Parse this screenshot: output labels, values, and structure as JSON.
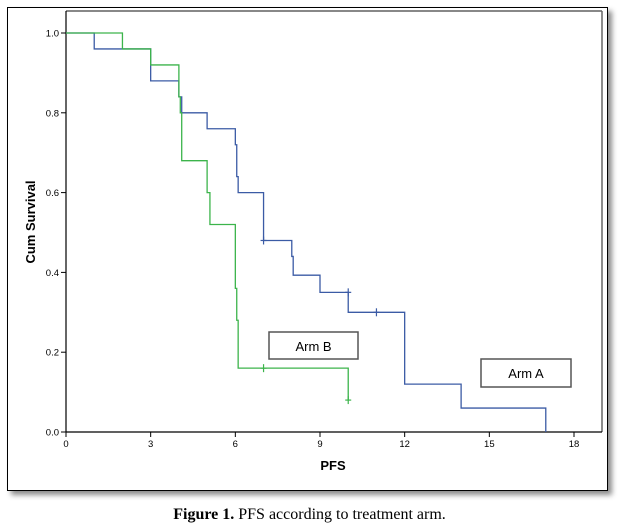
{
  "chart_data": {
    "type": "line",
    "subtype": "kaplan-meier-step",
    "xlabel": "PFS",
    "ylabel": "Cum Survival",
    "xlim": [
      0,
      18
    ],
    "ylim": [
      0.0,
      1.0
    ],
    "x_ticks": [
      0,
      3,
      6,
      9,
      12,
      15,
      18
    ],
    "y_ticks": [
      0.0,
      0.2,
      0.4,
      0.6,
      0.8,
      1.0
    ],
    "y_tick_labels": [
      "0.0",
      "0.2",
      "0.4",
      "0.6",
      "0.8",
      "1.0"
    ],
    "grid": false,
    "series": [
      {
        "name": "Arm A",
        "color": "#3B5BA5",
        "steps": [
          [
            0,
            1.0
          ],
          [
            1,
            0.96
          ],
          [
            3,
            0.88
          ],
          [
            4,
            0.84
          ],
          [
            4.1,
            0.8
          ],
          [
            5,
            0.76
          ],
          [
            6,
            0.72
          ],
          [
            6.05,
            0.64
          ],
          [
            6.1,
            0.6
          ],
          [
            7,
            0.48
          ],
          [
            8,
            0.44
          ],
          [
            8.05,
            0.393
          ],
          [
            9,
            0.35
          ],
          [
            10,
            0.3
          ],
          [
            12,
            0.12
          ],
          [
            14,
            0.06
          ],
          [
            17,
            0.0
          ]
        ],
        "end_x": 17,
        "censored": [
          [
            7,
            0.48
          ],
          [
            10,
            0.35
          ],
          [
            11,
            0.3
          ]
        ]
      },
      {
        "name": "Arm B",
        "color": "#3CB44B",
        "steps": [
          [
            0,
            1.0
          ],
          [
            2,
            0.96
          ],
          [
            3,
            0.92
          ],
          [
            4,
            0.84
          ],
          [
            4.05,
            0.8
          ],
          [
            4.1,
            0.68
          ],
          [
            5,
            0.6
          ],
          [
            5.1,
            0.52
          ],
          [
            6,
            0.36
          ],
          [
            6.05,
            0.28
          ],
          [
            6.1,
            0.16
          ],
          [
            10,
            0.08
          ]
        ],
        "end_x": 10,
        "censored": [
          [
            7,
            0.16
          ],
          [
            10,
            0.08
          ]
        ]
      }
    ],
    "annotations": [
      {
        "text": "Arm B",
        "near": "center"
      },
      {
        "text": "Arm A",
        "near": "bottom-right"
      }
    ]
  },
  "caption": {
    "label": "Figure 1.",
    "text": " PFS according to treatment arm."
  }
}
